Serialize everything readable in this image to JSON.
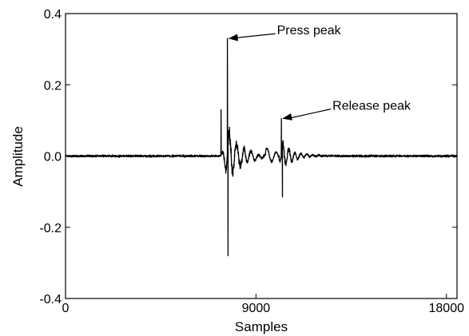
{
  "chart_data": {
    "type": "line",
    "title": "",
    "xlabel": "Samples",
    "ylabel": "Amplitude",
    "xlim": [
      0,
      18500
    ],
    "ylim": [
      -0.4,
      0.4
    ],
    "x_ticks": [
      0,
      9000,
      18000
    ],
    "x_tick_labels": [
      "0",
      "9000",
      "18000"
    ],
    "y_ticks": [
      0.4,
      0.2,
      0.0,
      -0.2,
      -0.4
    ],
    "y_tick_labels": [
      "0.4",
      "0.2",
      "0.0",
      "-0.2",
      "-0.4"
    ],
    "grid": false,
    "legend": "none",
    "line_color": "#000000",
    "series": [
      {
        "x": [
          0,
          7200,
          8200,
          8350,
          8450,
          8550,
          8650,
          9000,
          9600,
          10000,
          10400,
          10800,
          11200,
          12000,
          13000,
          14000,
          15000,
          16000,
          17000,
          18000,
          18500
        ],
        "y": [
          0.0,
          0.0,
          0.02,
          -0.08,
          0.05,
          -0.04,
          0.03,
          -0.03,
          0.02,
          -0.02,
          0.02,
          -0.01,
          0.01,
          0.005,
          0.0,
          0.0,
          0.0,
          0.0,
          0.0,
          0.0,
          0.0
        ]
      }
    ],
    "peaks": [
      {
        "x": 7650,
        "y": 0.33,
        "label": "Press peak"
      },
      {
        "x": 10200,
        "y": 0.105,
        "label": "Release peak"
      }
    ],
    "burst_extremes": {
      "press_min": {
        "x": 7680,
        "y": -0.28
      },
      "press_pre": {
        "x": 7350,
        "y": 0.13
      },
      "release_min": {
        "x": 10250,
        "y": -0.115
      }
    }
  }
}
